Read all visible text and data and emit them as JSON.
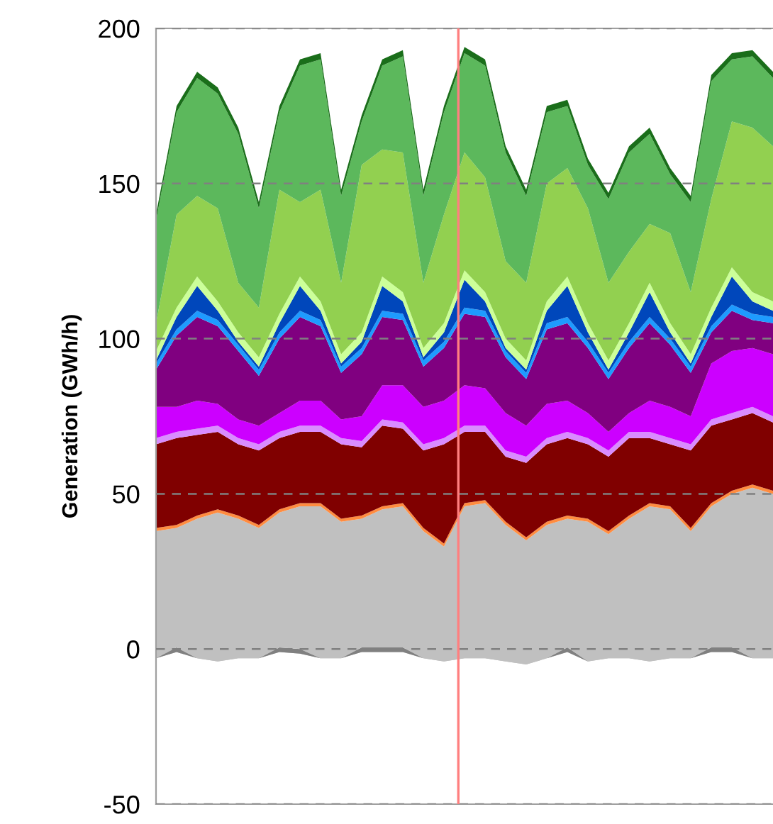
{
  "chart_data": {
    "type": "area",
    "stacked": true,
    "ylabel": "Generation (GWh/h)",
    "categories": [
      null,
      null,
      null,
      null,
      null,
      null,
      null,
      null,
      null,
      null,
      null,
      null,
      null,
      null,
      null,
      null,
      null,
      null,
      null,
      null,
      null,
      null,
      null,
      null,
      null,
      null,
      null,
      null,
      null,
      null,
      null
    ],
    "ylim": [
      -50,
      200
    ],
    "yticks": [
      -50,
      0,
      50,
      100,
      150,
      200
    ],
    "tick_labels": "y",
    "grid": "y",
    "ref_lines": [
      {
        "axis": "x",
        "color": "#ff7f7f"
      }
    ],
    "series": [
      {
        "color": "#c0c0c0",
        "values": [
          -3,
          -1,
          -3,
          -4,
          -3,
          -3,
          -1,
          -1.5,
          -3,
          -3,
          -1,
          -1,
          -1,
          -3,
          -4,
          -3,
          -3,
          -4,
          -5,
          -3,
          -1,
          -4,
          -3,
          -3,
          -4,
          -3,
          -3,
          -1,
          -1,
          -3,
          -3
        ]
      },
      {
        "color": "#808080",
        "values": [
          0,
          1.5,
          0,
          0,
          0,
          0,
          1.5,
          1.5,
          0,
          0,
          1.5,
          1.5,
          1.5,
          0,
          0,
          0,
          0,
          0,
          0,
          0,
          1.5,
          0,
          0,
          0,
          0,
          0,
          0,
          1.5,
          1.5,
          0,
          0
        ]
      },
      {
        "color": "#c0c0c0",
        "values": [
          41,
          38.5,
          45,
          48,
          45,
          42,
          43.5,
          46,
          49,
          44,
          41.5,
          44.5,
          45.5,
          41,
          37,
          49,
          50,
          44,
          40,
          43,
          41.5,
          45,
          40,
          45,
          50,
          48,
          41,
          45.5,
          49.5,
          55,
          53
        ]
      },
      {
        "color": "#ff8c40",
        "values": [
          1,
          1,
          1,
          1,
          1,
          1,
          1,
          1,
          1,
          1,
          1,
          1,
          1,
          1,
          1,
          1,
          1,
          1,
          1,
          1,
          1,
          1,
          1,
          1,
          1,
          1,
          1,
          1,
          1,
          1,
          1
        ]
      },
      {
        "color": "#800000",
        "values": [
          27,
          28,
          26,
          25,
          23,
          24,
          23,
          23,
          23,
          24,
          22,
          26,
          24,
          25,
          32,
          23,
          22,
          21,
          24,
          25,
          25,
          24,
          24,
          25,
          21,
          20,
          25,
          25,
          23,
          23,
          22
        ]
      },
      {
        "color": "#d98cff",
        "values": [
          2,
          2,
          2,
          2,
          2,
          2,
          2,
          2,
          2,
          2,
          2,
          2,
          2,
          2,
          2,
          2,
          2,
          2,
          2,
          2,
          2,
          2,
          2,
          2,
          2,
          2,
          2,
          2,
          2,
          2,
          2
        ]
      },
      {
        "color": "#cc00ff",
        "values": [
          10,
          8,
          9,
          7,
          6,
          6,
          6,
          8,
          8,
          6,
          8,
          11,
          12,
          12,
          12,
          13,
          12,
          12,
          10,
          11,
          10,
          8,
          6,
          6,
          10,
          10,
          9,
          18,
          20,
          19,
          20
        ]
      },
      {
        "color": "#800080",
        "values": [
          12,
          23,
          27,
          25,
          22,
          16,
          24,
          27,
          24,
          15,
          20,
          22,
          21,
          13,
          17,
          23,
          23,
          18,
          15,
          24,
          25,
          21,
          17,
          21,
          25,
          20,
          14,
          10,
          13,
          9,
          10
        ]
      },
      {
        "color": "#1e9bff",
        "values": [
          2,
          2,
          2,
          2,
          2,
          2,
          2,
          2,
          2,
          2,
          2,
          2,
          2,
          2,
          2,
          2,
          2,
          2,
          2,
          2,
          2,
          2,
          2,
          2,
          2,
          2,
          2,
          2,
          2,
          2,
          2
        ]
      },
      {
        "color": "#0047bb",
        "values": [
          1,
          4,
          8,
          3,
          1,
          1,
          3,
          8,
          3,
          1,
          2,
          8,
          4,
          1,
          3,
          9,
          3,
          1,
          1,
          4,
          10,
          3,
          1,
          3,
          8,
          2,
          1,
          3,
          9,
          4,
          2
        ]
      },
      {
        "color": "#ccff99",
        "values": [
          3,
          3,
          3,
          3,
          3,
          3,
          3,
          3,
          3,
          3,
          3,
          3,
          3,
          3,
          3,
          3,
          3,
          3,
          3,
          3,
          3,
          3,
          3,
          3,
          3,
          3,
          3,
          3,
          3,
          3,
          3
        ]
      },
      {
        "color": "#92d050",
        "values": [
          9,
          30,
          26,
          30,
          16,
          16,
          40,
          24,
          36,
          23,
          54,
          41,
          45,
          21,
          35,
          38,
          37,
          25,
          25,
          38,
          35,
          37,
          25,
          23,
          19,
          29,
          20,
          35,
          47,
          53,
          50
        ]
      },
      {
        "color": "#5cb85c",
        "values": [
          33,
          33,
          38,
          37,
          48,
          32,
          25,
          44,
          42,
          28,
          14,
          27,
          31,
          28,
          33,
          32,
          36,
          35,
          28,
          23,
          20,
          14,
          27,
          32,
          29,
          19,
          29,
          38,
          20,
          23,
          22
        ]
      },
      {
        "color": "#1a6e1a",
        "values": [
          2,
          2,
          2,
          2,
          2,
          2,
          2,
          2,
          2,
          2,
          2,
          2,
          2,
          2,
          2,
          2,
          2,
          2,
          2,
          2,
          2,
          2,
          2,
          2,
          2,
          2,
          2,
          2,
          2,
          2,
          2
        ]
      }
    ]
  }
}
